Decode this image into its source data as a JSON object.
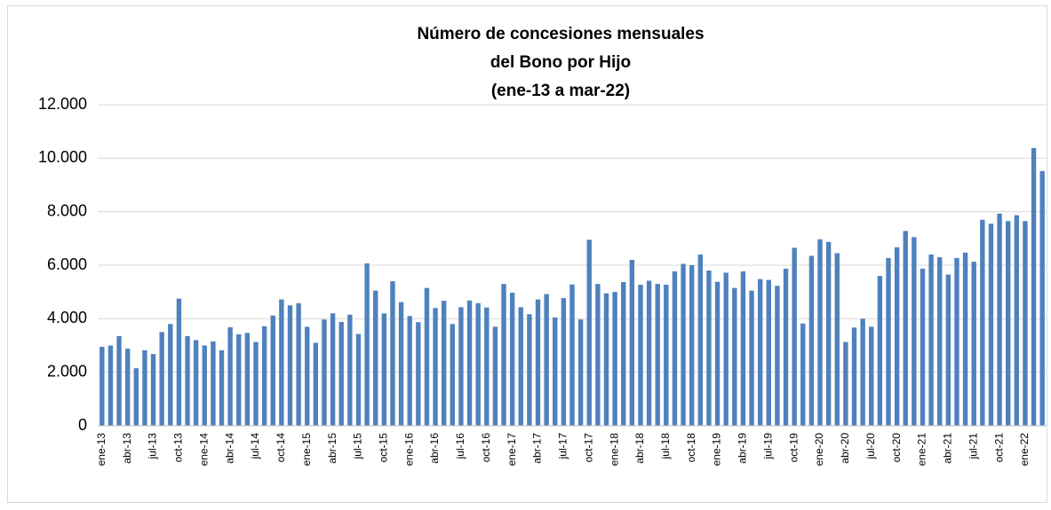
{
  "chart_data": {
    "type": "bar",
    "title": [
      "Número de concesiones mensuales",
      "del Bono por Hijo",
      "(ene-13 a mar-22)"
    ],
    "categories": [
      "ene-13",
      null,
      null,
      "abr-13",
      null,
      null,
      "jul-13",
      null,
      null,
      "oct-13",
      null,
      null,
      "ene-14",
      null,
      null,
      "abr-14",
      null,
      null,
      "jul-14",
      null,
      null,
      "oct-14",
      null,
      null,
      "ene-15",
      null,
      null,
      "abr-15",
      null,
      null,
      "jul-15",
      null,
      null,
      "oct-15",
      null,
      null,
      "ene-16",
      null,
      null,
      "abr-16",
      null,
      null,
      "jul-16",
      null,
      null,
      "oct-16",
      null,
      null,
      "ene-17",
      null,
      null,
      "abr-17",
      null,
      null,
      "jul-17",
      null,
      null,
      "oct-17",
      null,
      null,
      "ene-18",
      null,
      null,
      "abr-18",
      null,
      null,
      "jul-18",
      null,
      null,
      "oct-18",
      null,
      null,
      "ene-19",
      null,
      null,
      "abr-19",
      null,
      null,
      "jul-19",
      null,
      null,
      "oct-19",
      null,
      null,
      "ene-20",
      null,
      null,
      "abr-20",
      null,
      null,
      "jul-20",
      null,
      null,
      "oct-20",
      null,
      null,
      "ene-21",
      null,
      null,
      "abr-21",
      null,
      null,
      "jul-21",
      null,
      null,
      "oct-21",
      null,
      null,
      "ene-22",
      null,
      null
    ],
    "values": [
      2950,
      3000,
      3350,
      2880,
      2150,
      2820,
      2680,
      3500,
      3800,
      4750,
      3350,
      3200,
      3000,
      3150,
      2820,
      3680,
      3420,
      3470,
      3130,
      3720,
      4120,
      4720,
      4500,
      4580,
      3700,
      3100,
      3970,
      4200,
      3880,
      4150,
      3430,
      6070,
      5050,
      4200,
      5400,
      4620,
      4100,
      3870,
      5150,
      4400,
      4670,
      3800,
      4430,
      4680,
      4580,
      4420,
      3700,
      5300,
      4970,
      4430,
      4170,
      4720,
      4920,
      4050,
      4770,
      5280,
      3970,
      6950,
      5300,
      4950,
      5000,
      5370,
      6200,
      5270,
      5420,
      5300,
      5270,
      5770,
      6050,
      6000,
      6400,
      5800,
      5380,
      5720,
      5150,
      5770,
      5050,
      5480,
      5450,
      5230,
      5870,
      6650,
      3820,
      6350,
      6970,
      6870,
      6450,
      3130,
      3670,
      4000,
      3700,
      5600,
      6270,
      6670,
      7280,
      7050,
      5870,
      6400,
      6300,
      5650,
      6270,
      6470,
      6130,
      7700,
      7550,
      7930,
      7650,
      7870,
      7650,
      10380,
      9520
    ],
    "color": "#4f81bd",
    "ylim": [
      0,
      12000
    ],
    "yticks": [
      0,
      {
        "value": 2000,
        "label": "2.000"
      },
      {
        "value": 4000,
        "label": "4.000"
      },
      {
        "value": 6000,
        "label": "6.000"
      },
      {
        "value": 8000,
        "label": "8.000"
      },
      {
        "value": 10000,
        "label": "10.000"
      },
      {
        "value": 12000,
        "label": "12.000"
      }
    ],
    "grid": true
  }
}
